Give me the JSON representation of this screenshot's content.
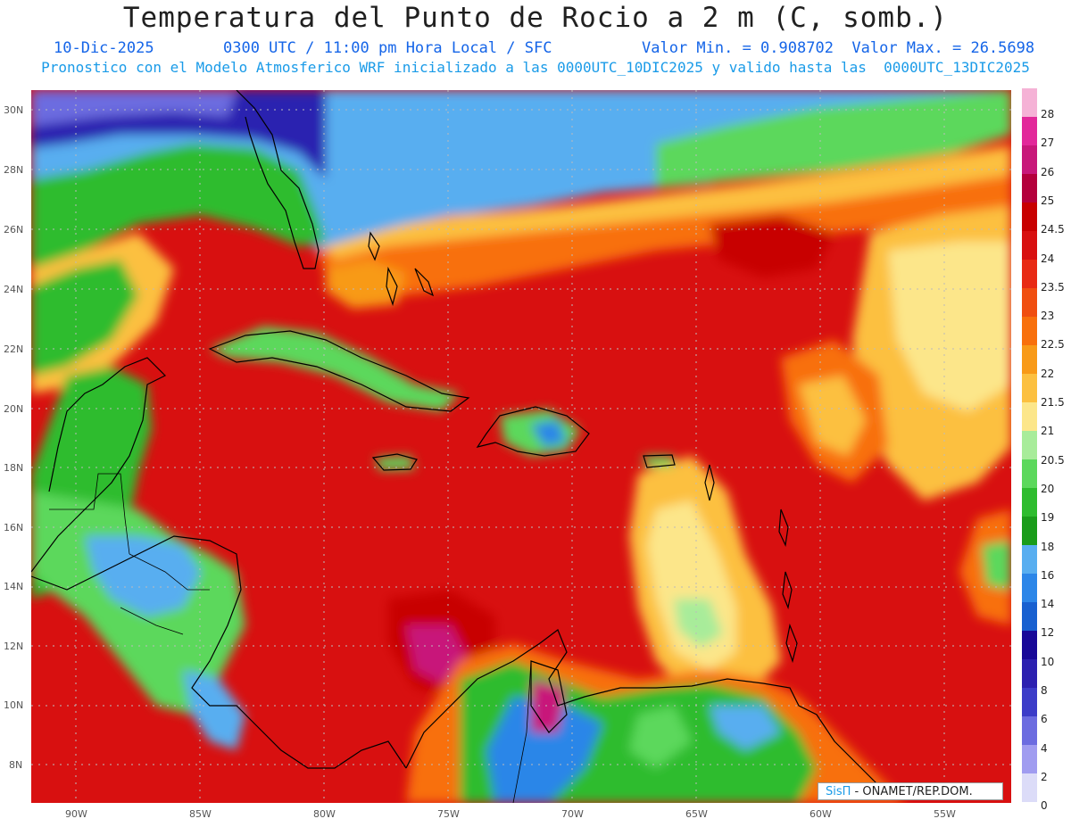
{
  "title": "Temperatura del Punto de Rocio a 2 m (C, somb.)",
  "subtitle": {
    "date": "10-Dic-2025",
    "time": "0300 UTC / 11:00 pm Hora Local / SFC",
    "minmax": "Valor Min. = 0.908702  Valor Max. = 26.5698",
    "model_line": "Pronostico con el Modelo Atmosferico WRF inicializado a las 0000UTC_10DIC2025 y valido hasta las  0000UTC_13DIC2025"
  },
  "axes": {
    "lat_labels": [
      "30N",
      "28N",
      "26N",
      "24N",
      "22N",
      "20N",
      "18N",
      "16N",
      "14N",
      "12N",
      "10N",
      "8N"
    ],
    "lon_labels": [
      "90W",
      "85W",
      "80W",
      "75W",
      "70W",
      "65W",
      "60W",
      "55W"
    ]
  },
  "colorbar": {
    "labels": [
      "28",
      "27",
      "26",
      "25",
      "24.5",
      "24",
      "23.5",
      "23",
      "22.5",
      "22",
      "21.5",
      "21",
      "20.5",
      "20",
      "19",
      "18",
      "16",
      "14",
      "12",
      "10",
      "8",
      "6",
      "4",
      "2",
      "0"
    ],
    "colors": [
      "#f5b2d6",
      "#e2289a",
      "#c8187a",
      "#b4003c",
      "#c80000",
      "#d81010",
      "#e82a14",
      "#f04e10",
      "#f8700c",
      "#f89a18",
      "#fcc040",
      "#fce68a",
      "#a8ec9a",
      "#5cd85c",
      "#2ebc2e",
      "#1a9c1a",
      "#58aef0",
      "#2c86e8",
      "#1860d0",
      "#180898",
      "#2c20b0",
      "#3c3cc8",
      "#6c6ce0",
      "#a09cf0",
      "#dcdcf8"
    ]
  },
  "credit": {
    "brand": "SisΠ",
    "org": " - ONAMET/REP.DOM."
  }
}
